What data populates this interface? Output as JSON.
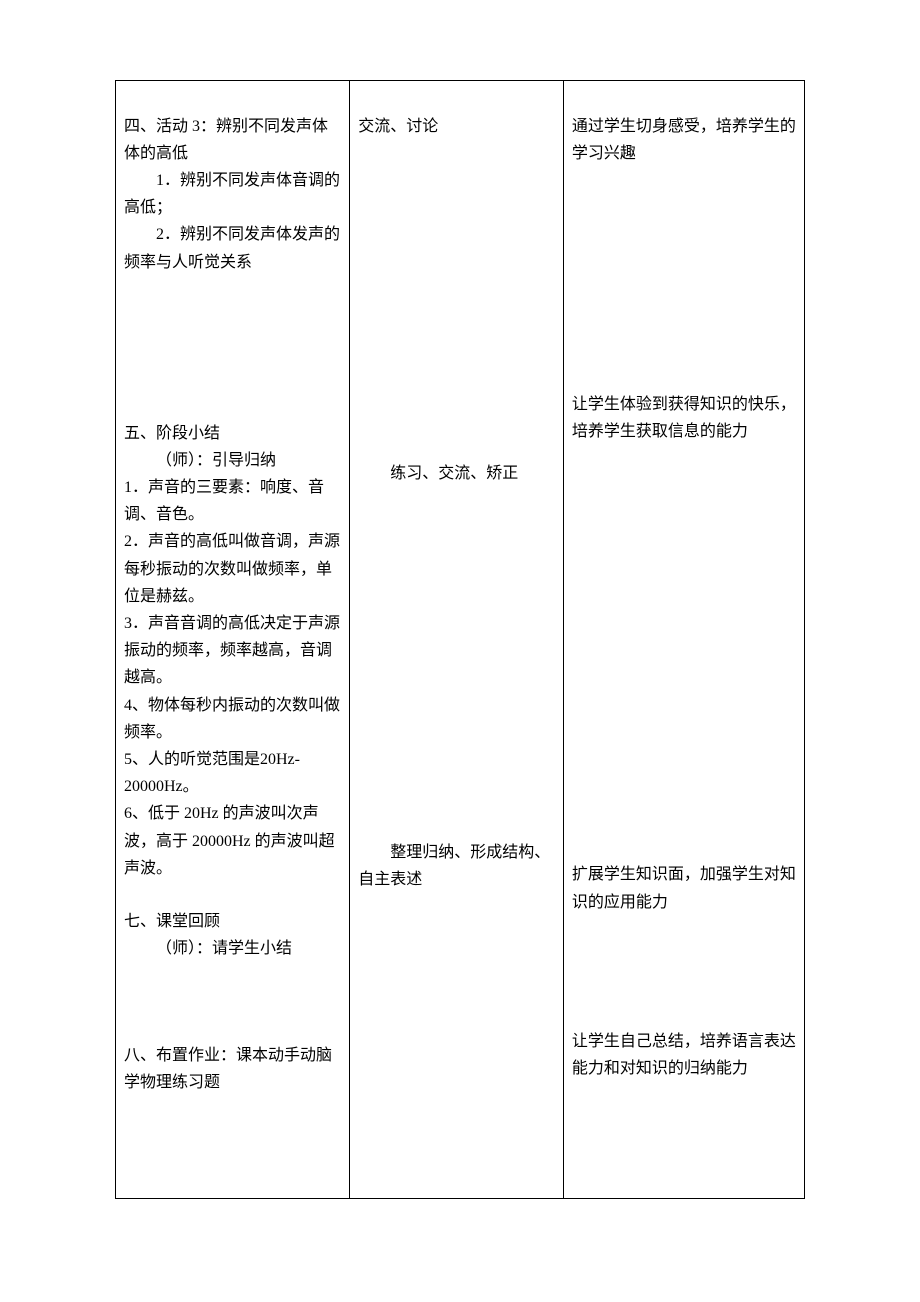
{
  "table": {
    "border_color": "#000000",
    "background_color": "#ffffff",
    "text_color": "#000000",
    "font_size_pt": 12,
    "columns": {
      "c1_width_pct": 34,
      "c2_width_pct": 31,
      "c3_width_pct": 35
    },
    "row1": {
      "col1": {
        "sec4_title": "四、活动 3：辨别不同发声体体的高低",
        "sec4_item1": "1．辨别不同发声体音调的高低；",
        "sec4_item2": "2．辨别不同发声体发声的频率与人听觉关系",
        "sec5_title": "五、阶段小结",
        "sec5_lead": "（师）：引导归纳",
        "sec5_p1": "1．声音的三要素：响度、音调、音色。",
        "sec5_p2": "2．声音的高低叫做音调，声源每秒振动的次数叫做频率，单位是赫兹。",
        "sec5_p3": "3．声音音调的高低决定于声源振动的频率，频率越高，音调越高。",
        "sec5_p4": "4、物体每秒内振动的次数叫做频率。",
        "sec5_p5": "5、人的听觉范围是20Hz-20000Hz。",
        "sec5_p6": "6、低于 20Hz 的声波叫次声波，高于 20000Hz 的声波叫超声波。",
        "sec7_title": "七、课堂回顾",
        "sec7_lead": "（师）：请学生小结",
        "sec8_title": "八、布置作业：课本动手动脑学物理练习题"
      },
      "col2": {
        "a1": "交流、讨论",
        "a2": "练习、交流、矫正",
        "a3": "整理归纳、形成结构、自主表述"
      },
      "col3": {
        "b1": "通过学生切身感受，培养学生的学习兴趣",
        "b2": "让学生体验到获得知识的快乐，培养学生获取信息的能力",
        "b3": "扩展学生知识面，加强学生对知识的应用能力",
        "b4": "让学生自己总结，培养语言表达能力和对知识的归纳能力"
      }
    }
  }
}
